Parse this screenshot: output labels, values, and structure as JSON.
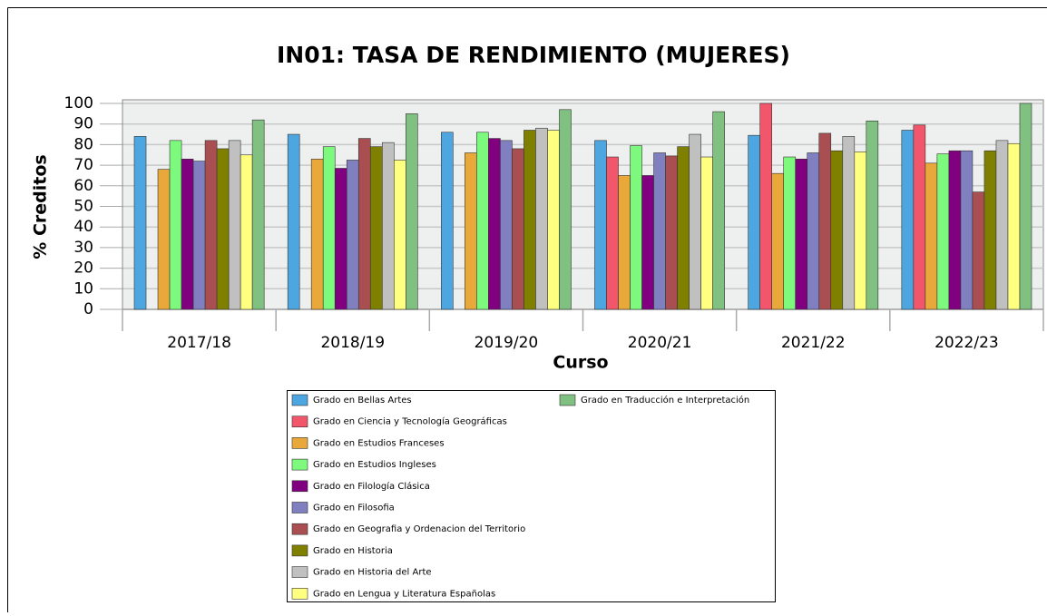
{
  "chart_data": {
    "type": "bar",
    "title": "IN01: TASA DE RENDIMIENTO (MUJERES)",
    "x_label": "Curso",
    "y_label": "% Creditos",
    "categories": [
      "2017/18",
      "2018/19",
      "2019/20",
      "2020/21",
      "2021/22",
      "2022/23"
    ],
    "ylim": [
      0,
      100
    ],
    "yticks": [
      0,
      10,
      20,
      30,
      40,
      50,
      60,
      70,
      80,
      90,
      100
    ],
    "grid": true,
    "series": [
      {
        "name": "Grado en Bellas Artes",
        "color": "#4da6df",
        "values": [
          84,
          85,
          86,
          82,
          84.5,
          87
        ]
      },
      {
        "name": "Grado en Ciencia y Tecnología Geográficas",
        "color": "#f2566a",
        "values": [
          null,
          null,
          null,
          74,
          100,
          89.5
        ]
      },
      {
        "name": "Grado en Estudios Franceses",
        "color": "#e9a93a",
        "values": [
          68,
          73,
          76,
          65,
          66,
          71
        ]
      },
      {
        "name": "Grado en Estudios Ingleses",
        "color": "#7dfa7d",
        "values": [
          82,
          79,
          86,
          79.5,
          74,
          75.5
        ]
      },
      {
        "name": "Grado en Filología Clásica",
        "color": "#800080",
        "values": [
          73,
          68.5,
          83,
          65,
          73,
          77
        ]
      },
      {
        "name": "Grado en Filosofia",
        "color": "#8080c0",
        "values": [
          72,
          72.5,
          82,
          76,
          76,
          77
        ]
      },
      {
        "name": "Grado en Geografia y Ordenacion del Territorio",
        "color": "#a94f52",
        "values": [
          82,
          83,
          78,
          74.5,
          85.5,
          57
        ]
      },
      {
        "name": "Grado en Historia",
        "color": "#808000",
        "values": [
          78,
          79,
          87,
          79,
          77,
          77
        ]
      },
      {
        "name": "Grado en Historia del Arte",
        "color": "#c0c0c0",
        "values": [
          82,
          81,
          88,
          85,
          84,
          82
        ]
      },
      {
        "name": "Grado en Lengua y Literatura Españolas",
        "color": "#ffff80",
        "values": [
          75,
          72.5,
          87,
          74,
          76.5,
          80.5
        ]
      },
      {
        "name": "Grado en Traducción e Interpretación",
        "color": "#80c080",
        "values": [
          92,
          95,
          97,
          96,
          91.5,
          100
        ]
      }
    ]
  }
}
